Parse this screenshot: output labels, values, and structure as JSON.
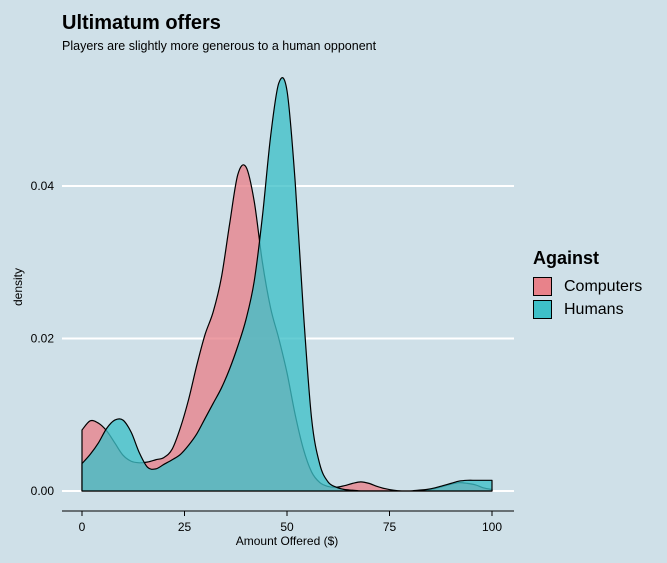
{
  "title": "Ultimatum offers",
  "subtitle": "Players are slightly more generous to a human opponent",
  "colors": {
    "background": "#cfe0e8",
    "computers": "#e8828a",
    "humans": "#3ec0c8",
    "grid": "#ffffff"
  },
  "legend": {
    "title": "Against",
    "items": [
      {
        "label": "Computers",
        "color": "#e8828a"
      },
      {
        "label": "Humans",
        "color": "#3ec0c8"
      }
    ]
  },
  "chart_data": {
    "type": "area",
    "subtype": "density",
    "xlabel": "Amount Offered ($)",
    "ylabel": "density",
    "xlim": [
      0,
      100
    ],
    "ylim": [
      0,
      0.054
    ],
    "xticks": [
      0,
      25,
      50,
      75,
      100
    ],
    "yticks": [
      0,
      0.02,
      0.04
    ],
    "ytick_labels": [
      "0.00",
      "0.02",
      "0.04"
    ],
    "grid": "horizontal major lines",
    "legend_position": "right",
    "series": [
      {
        "name": "Computers",
        "x": [
          0,
          2,
          4,
          6,
          8,
          10,
          12,
          14,
          16,
          18,
          20,
          22,
          24,
          26,
          28,
          30,
          32,
          34,
          36,
          38,
          40,
          42,
          44,
          46,
          48,
          50,
          52,
          54,
          56,
          58,
          60,
          62,
          64,
          66,
          68,
          70,
          72,
          74,
          76,
          78,
          80,
          82,
          84,
          86,
          88,
          90,
          92,
          94,
          96,
          98,
          100
        ],
        "y": [
          0.008,
          0.0092,
          0.0089,
          0.0079,
          0.0063,
          0.0047,
          0.0039,
          0.0037,
          0.0038,
          0.0041,
          0.0044,
          0.0055,
          0.0083,
          0.012,
          0.0165,
          0.0205,
          0.0235,
          0.028,
          0.035,
          0.0415,
          0.0425,
          0.038,
          0.03,
          0.024,
          0.02,
          0.0155,
          0.01,
          0.0055,
          0.0025,
          0.0011,
          0.0006,
          0.0005,
          0.0007,
          0.001,
          0.0012,
          0.001,
          0.0006,
          0.0003,
          0.0001,
          0.0,
          0.0,
          0.0,
          0.0001,
          0.0003,
          0.0006,
          0.0009,
          0.0011,
          0.001,
          0.0008,
          0.0004,
          0.0002
        ]
      },
      {
        "name": "Humans",
        "x": [
          0,
          2,
          4,
          6,
          8,
          10,
          12,
          14,
          16,
          18,
          20,
          22,
          24,
          26,
          28,
          30,
          32,
          34,
          36,
          38,
          40,
          42,
          44,
          46,
          48,
          50,
          52,
          54,
          56,
          58,
          60,
          62,
          64,
          66,
          68,
          70,
          72,
          74,
          76,
          78,
          80,
          82,
          84,
          86,
          88,
          90,
          92,
          94,
          96,
          98,
          100
        ],
        "y": [
          0.0036,
          0.0048,
          0.0063,
          0.0082,
          0.0093,
          0.0093,
          0.0077,
          0.005,
          0.0031,
          0.0029,
          0.0035,
          0.0041,
          0.0048,
          0.006,
          0.0075,
          0.0095,
          0.0115,
          0.0135,
          0.016,
          0.019,
          0.0225,
          0.0275,
          0.036,
          0.0465,
          0.0535,
          0.0525,
          0.0405,
          0.0235,
          0.0095,
          0.0035,
          0.0012,
          0.0005,
          0.0002,
          0.0001,
          0.0,
          0.0,
          0.0,
          0.0,
          0.0,
          0.0,
          0.0,
          0.0001,
          0.0002,
          0.0004,
          0.0007,
          0.001,
          0.0013,
          0.0014,
          0.0014,
          0.0014,
          0.0014
        ]
      }
    ]
  }
}
